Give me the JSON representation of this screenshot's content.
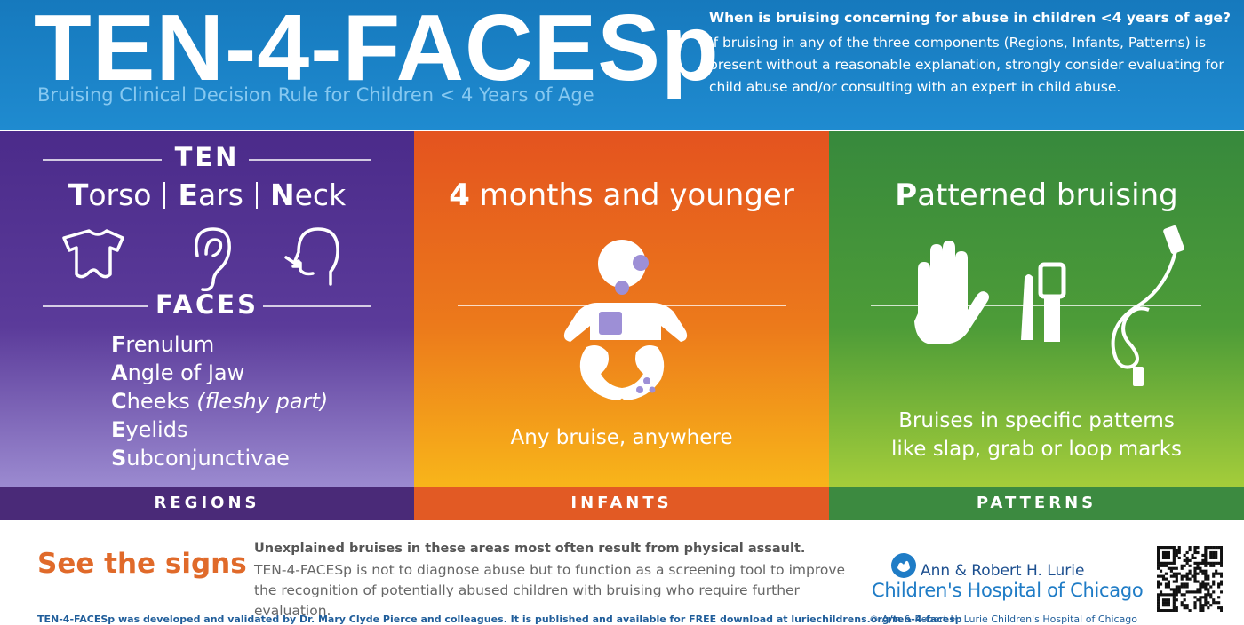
{
  "header": {
    "title": "TEN-4-FACESp",
    "subtitle": "Bruising Clinical Decision Rule for Children < 4 Years of Age",
    "question": "When is bruising concerning for abuse in children <4 years of age?",
    "explanation": "If bruising in any of the three components (Regions, Infants, Patterns) is present without a reasonable explanation, strongly consider evaluating for child abuse and/or consulting with an expert in child abuse."
  },
  "panels": [
    {
      "label": "REGIONS",
      "ten": {
        "heading": "TEN",
        "items": [
          "Torso",
          "Ears",
          "Neck"
        ]
      },
      "faces": {
        "heading": "FACES",
        "items": [
          {
            "text": "Frenulum"
          },
          {
            "text": "Angle of Jaw"
          },
          {
            "text": "Cheeks",
            "note": "(fleshy part)"
          },
          {
            "text": "Eyelids"
          },
          {
            "text": "Subconjunctivae"
          }
        ]
      }
    },
    {
      "label": "INFANTS",
      "heading": "4 months and younger",
      "caption": "Any bruise, anywhere"
    },
    {
      "label": "PATTERNS",
      "heading": "Patterned bruising",
      "caption": "Bruises in specific patterns like slap, grab or loop marks"
    }
  ],
  "footer": {
    "callout": "See the signs",
    "lead": "Unexplained bruises in these areas most often result from physical assault.",
    "body": "TEN-4-FACESp is not to diagnose abuse but to function as a screening tool to improve the recognition of potentially abused children with bruising who require further evaluation.",
    "logo": {
      "line1": "Ann & Robert H. Lurie",
      "line2": "Children's Hospital of Chicago"
    },
    "credit": "TEN-4-FACESp was developed and validated by Dr. Mary Clyde Pierce and colleagues. It is published and available for FREE download at luriechildrens.org/ten-4-facesp",
    "copyright": "© Ann & Robert H. Lurie Children's Hospital of Chicago"
  }
}
